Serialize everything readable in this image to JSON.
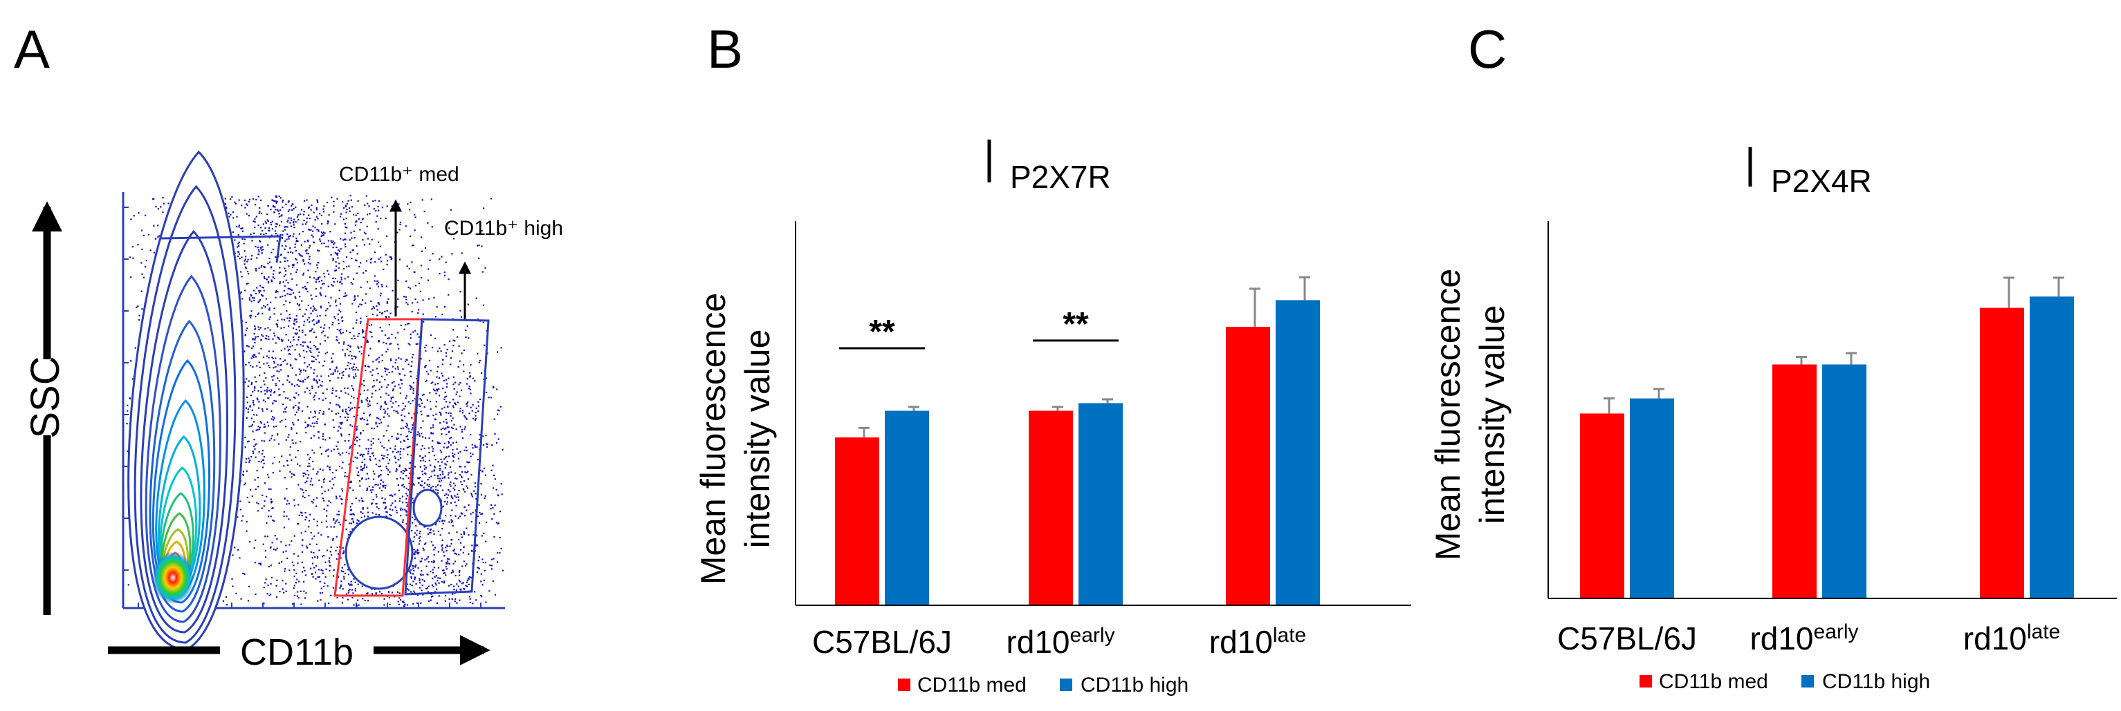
{
  "panels": {
    "a": "A",
    "b": "B",
    "c": "C"
  },
  "flow": {
    "y_axis_label": "SSC",
    "x_axis_label": "CD11b",
    "gate_med_label": "CD11b⁺ med",
    "gate_high_label": "CD11b⁺ high"
  },
  "legend": {
    "med": "CD11b med",
    "high": "CD11b high"
  },
  "colors": {
    "med": "#ff0000",
    "high": "#0070c0",
    "gate_med": "#ff3030",
    "gate_high": "#2a3fb8",
    "dots": "#1010c0"
  },
  "chart_data": [
    {
      "type": "bar",
      "title": "P2X7R",
      "ylabel_line1": "Mean fluorescence",
      "ylabel_line2": "intensity value",
      "ylim": [
        0,
        100
      ],
      "categories": [
        {
          "base": "C57BL/6J",
          "sup": ""
        },
        {
          "base": "rd10",
          "sup": "early"
        },
        {
          "base": "rd10",
          "sup": "late"
        }
      ],
      "series": [
        {
          "name": "CD11b med",
          "values": [
            44,
            51,
            73
          ],
          "errors": [
            2.5,
            1,
            10
          ]
        },
        {
          "name": "CD11b high",
          "values": [
            51,
            53,
            80
          ],
          "errors": [
            1,
            1,
            6
          ]
        }
      ],
      "significance": [
        {
          "category": 0,
          "label": "**"
        },
        {
          "category": 1,
          "label": "**"
        }
      ]
    },
    {
      "type": "bar",
      "title": "P2X4R",
      "ylabel_line1": "Mean fluorescence",
      "ylabel_line2": "intensity value",
      "ylim": [
        0,
        100
      ],
      "categories": [
        {
          "base": "C57BL/6J",
          "sup": ""
        },
        {
          "base": "rd10",
          "sup": "early"
        },
        {
          "base": "rd10",
          "sup": "late"
        }
      ],
      "series": [
        {
          "name": "CD11b med",
          "values": [
            49,
            62,
            77
          ],
          "errors": [
            4,
            2,
            8
          ]
        },
        {
          "name": "CD11b high",
          "values": [
            53,
            62,
            80
          ],
          "errors": [
            2.5,
            3,
            5
          ]
        }
      ],
      "significance": []
    }
  ]
}
